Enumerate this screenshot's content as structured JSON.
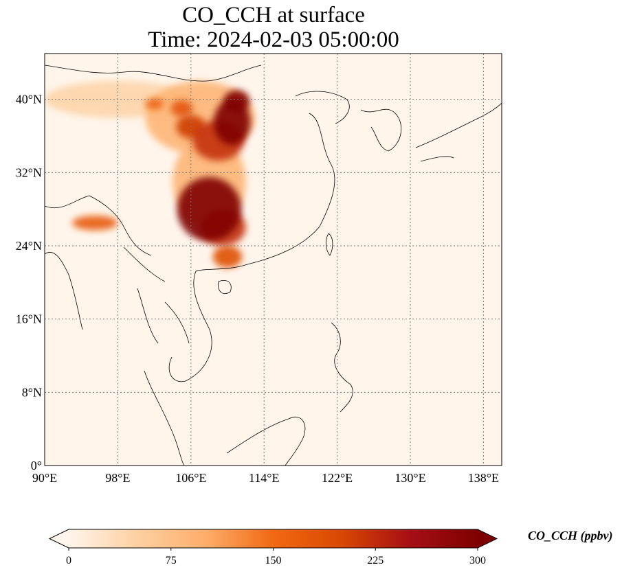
{
  "title": {
    "line1": "CO_CCH at surface",
    "line2": "Time: 2024-02-03 05:00:00"
  },
  "map": {
    "lon_range": [
      90,
      140
    ],
    "lat_range": [
      0,
      45
    ],
    "lon_ticks": [
      {
        "value": 90,
        "label": "90°E"
      },
      {
        "value": 98,
        "label": "98°E"
      },
      {
        "value": 106,
        "label": "106°E"
      },
      {
        "value": 114,
        "label": "114°E"
      },
      {
        "value": 122,
        "label": "122°E"
      },
      {
        "value": 130,
        "label": "130°E"
      },
      {
        "value": 138,
        "label": "138°E"
      }
    ],
    "lat_ticks": [
      {
        "value": 0,
        "label": "0°"
      },
      {
        "value": 8,
        "label": "8°N"
      },
      {
        "value": 16,
        "label": "16°N"
      },
      {
        "value": 24,
        "label": "24°N"
      },
      {
        "value": 32,
        "label": "32°N"
      },
      {
        "value": 40,
        "label": "40°N"
      }
    ],
    "grid": "dotted",
    "background_color": "#fff5eb"
  },
  "colorbar": {
    "label": "CO_CCH (ppbv)",
    "colormap": [
      "#fff5eb",
      "#fdd0a2",
      "#fdae6b",
      "#f16913",
      "#d94801",
      "#a50f15",
      "#7f0000"
    ],
    "min": 0,
    "max": 300,
    "extend": "both",
    "ticks": [
      {
        "value": 0,
        "label": "0"
      },
      {
        "value": 75,
        "label": "75"
      },
      {
        "value": 150,
        "label": "150"
      },
      {
        "value": 225,
        "label": "225"
      },
      {
        "value": 300,
        "label": "300"
      }
    ]
  },
  "plumes": [
    {
      "lon": 108,
      "lat": 28,
      "rx": 3.5,
      "ry": 3.5,
      "value": 300
    },
    {
      "lon": 109.5,
      "lat": 26,
      "rx": 2.5,
      "ry": 2,
      "value": 220
    },
    {
      "lon": 110,
      "lat": 22.8,
      "rx": 1.6,
      "ry": 1.2,
      "value": 190
    },
    {
      "lon": 109,
      "lat": 35.5,
      "rx": 2.8,
      "ry": 2.2,
      "value": 220
    },
    {
      "lon": 110.5,
      "lat": 37.5,
      "rx": 2,
      "ry": 2.5,
      "value": 300
    },
    {
      "lon": 111,
      "lat": 39.8,
      "rx": 1.4,
      "ry": 1.2,
      "value": 300
    },
    {
      "lon": 106,
      "lat": 37,
      "rx": 1.6,
      "ry": 1.3,
      "value": 210
    },
    {
      "lon": 105,
      "lat": 39,
      "rx": 1.2,
      "ry": 0.9,
      "value": 180
    },
    {
      "lon": 102,
      "lat": 39.5,
      "rx": 1,
      "ry": 0.6,
      "value": 160
    },
    {
      "lon": 95.5,
      "lat": 26.5,
      "rx": 2.5,
      "ry": 0.8,
      "value": 170
    },
    {
      "lon": 108,
      "lat": 31,
      "rx": 4,
      "ry": 5,
      "value": 90
    },
    {
      "lon": 107,
      "lat": 38,
      "rx": 6,
      "ry": 4,
      "value": 90
    },
    {
      "lon": 98,
      "lat": 40,
      "rx": 8,
      "ry": 2,
      "value": 45
    }
  ]
}
